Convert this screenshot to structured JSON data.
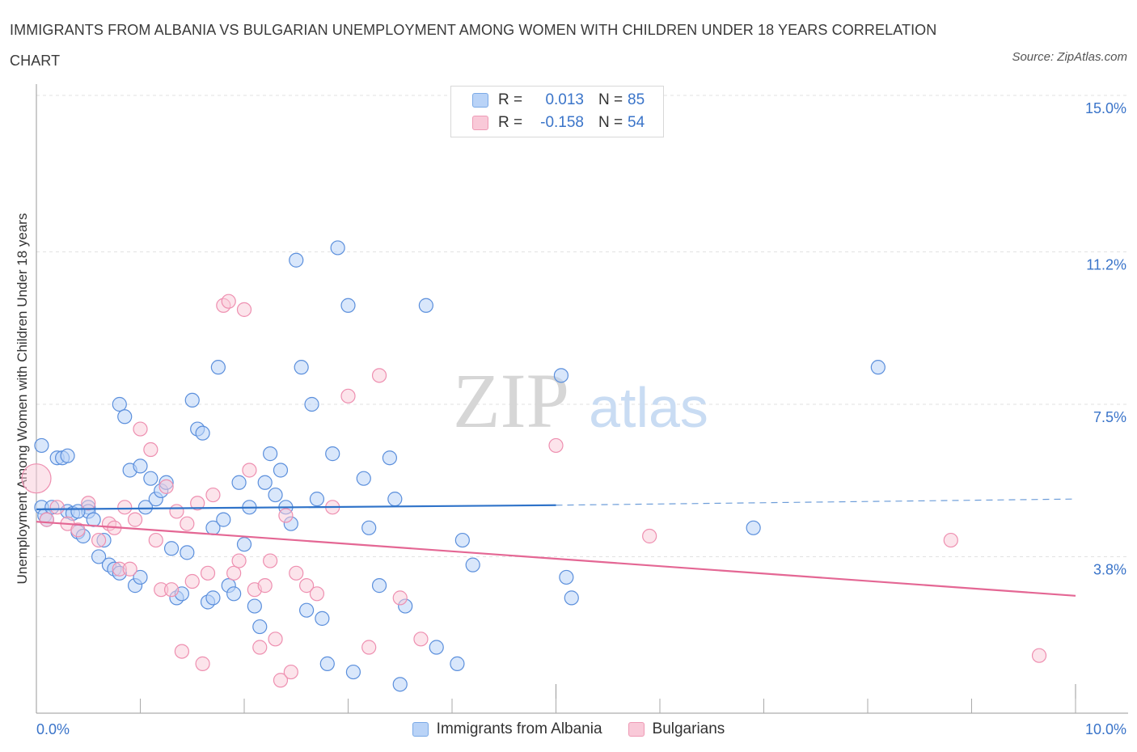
{
  "title": "IMMIGRANTS FROM ALBANIA VS BULGARIAN UNEMPLOYMENT AMONG WOMEN WITH CHILDREN UNDER 18 YEARS CORRELATION CHART",
  "source": "Source: ZipAtlas.com",
  "watermark": {
    "zip": "ZIP",
    "atlas": "atlas"
  },
  "colors": {
    "blue": "#5b8fdc",
    "blue_fill": "#b9d3f7",
    "blue_line": "#2f73c9",
    "pink": "#ee8fb0",
    "pink_fill": "#f9c9d8",
    "pink_line": "#e46794",
    "tick_text": "#3a74c9",
    "grid": "#e2e2e2"
  },
  "legend": {
    "rows": [
      {
        "r_label": "R =",
        "r_value": "0.013",
        "n_label": "N =",
        "n_value": "85"
      },
      {
        "r_label": "R =",
        "r_value": "-0.158",
        "n_label": "N =",
        "n_value": "54"
      }
    ]
  },
  "chart_data": {
    "type": "scatter",
    "title": "IMMIGRANTS FROM ALBANIA VS BULGARIAN UNEMPLOYMENT AMONG WOMEN WITH CHILDREN UNDER 18 YEARS CORRELATION CHART",
    "xlabel": "",
    "ylabel": "Unemployment Among Women with Children Under 18 years",
    "xlim": [
      0,
      10
    ],
    "ylim": [
      0,
      15
    ],
    "x_tick_labels": [
      "0.0%",
      "10.0%"
    ],
    "y_ticks": [
      3.8,
      7.5,
      11.2,
      15.0
    ],
    "y_tick_labels": [
      "3.8%",
      "7.5%",
      "11.2%",
      "15.0%"
    ],
    "grid": "horizontal dashed",
    "legend_placement": "bottom-center",
    "series": [
      {
        "name": "Immigrants from Albania",
        "r": 0.013,
        "n": 85,
        "trend": {
          "x0": 0.0,
          "y0": 4.95,
          "x1": 5.0,
          "y1": 5.05,
          "dashed_to_x": 10.0,
          "dashed_to_y": 5.2
        },
        "points": [
          [
            0.05,
            6.5
          ],
          [
            0.05,
            5.0
          ],
          [
            0.08,
            4.8
          ],
          [
            0.1,
            4.7
          ],
          [
            0.15,
            5.0
          ],
          [
            0.2,
            6.2
          ],
          [
            0.25,
            6.2
          ],
          [
            0.3,
            4.9
          ],
          [
            0.3,
            6.25
          ],
          [
            0.35,
            4.85
          ],
          [
            0.4,
            4.4
          ],
          [
            0.45,
            4.3
          ],
          [
            0.5,
            5.0
          ],
          [
            0.5,
            4.9
          ],
          [
            0.55,
            4.7
          ],
          [
            0.6,
            3.8
          ],
          [
            0.65,
            4.2
          ],
          [
            0.7,
            3.6
          ],
          [
            0.75,
            3.5
          ],
          [
            0.8,
            7.5
          ],
          [
            0.85,
            7.2
          ],
          [
            0.9,
            5.9
          ],
          [
            0.95,
            3.1
          ],
          [
            1.0,
            6.0
          ],
          [
            1.0,
            3.3
          ],
          [
            1.05,
            5.0
          ],
          [
            1.1,
            5.7
          ],
          [
            1.15,
            5.2
          ],
          [
            1.2,
            5.4
          ],
          [
            1.25,
            5.6
          ],
          [
            1.3,
            4.0
          ],
          [
            1.35,
            2.8
          ],
          [
            1.4,
            2.9
          ],
          [
            1.45,
            3.9
          ],
          [
            1.5,
            7.6
          ],
          [
            1.55,
            6.9
          ],
          [
            1.6,
            6.8
          ],
          [
            1.65,
            2.7
          ],
          [
            1.7,
            4.5
          ],
          [
            1.75,
            8.4
          ],
          [
            1.8,
            4.7
          ],
          [
            1.85,
            3.1
          ],
          [
            1.9,
            2.9
          ],
          [
            1.95,
            5.6
          ],
          [
            2.0,
            4.1
          ],
          [
            2.05,
            5.0
          ],
          [
            2.1,
            2.6
          ],
          [
            2.15,
            2.1
          ],
          [
            2.2,
            5.6
          ],
          [
            2.25,
            6.3
          ],
          [
            2.3,
            5.3
          ],
          [
            2.35,
            5.9
          ],
          [
            2.4,
            5.0
          ],
          [
            2.45,
            4.6
          ],
          [
            2.5,
            11.0
          ],
          [
            2.55,
            8.4
          ],
          [
            2.6,
            2.5
          ],
          [
            2.65,
            7.5
          ],
          [
            2.7,
            5.2
          ],
          [
            2.75,
            2.3
          ],
          [
            2.8,
            1.2
          ],
          [
            2.85,
            6.3
          ],
          [
            2.9,
            11.3
          ],
          [
            3.0,
            9.9
          ],
          [
            3.05,
            1.0
          ],
          [
            3.15,
            5.7
          ],
          [
            3.2,
            4.5
          ],
          [
            3.3,
            3.1
          ],
          [
            3.4,
            6.2
          ],
          [
            3.45,
            5.2
          ],
          [
            3.5,
            0.7
          ],
          [
            3.55,
            2.6
          ],
          [
            3.75,
            9.9
          ],
          [
            3.85,
            1.6
          ],
          [
            4.05,
            1.2
          ],
          [
            4.1,
            4.2
          ],
          [
            4.2,
            3.6
          ],
          [
            5.05,
            8.2
          ],
          [
            5.1,
            3.3
          ],
          [
            5.15,
            2.8
          ],
          [
            6.9,
            4.5
          ],
          [
            8.1,
            8.4
          ],
          [
            0.4,
            4.9
          ],
          [
            1.7,
            2.8
          ],
          [
            0.8,
            3.4
          ]
        ]
      },
      {
        "name": "Bulgarians",
        "r": -0.158,
        "n": 54,
        "trend": {
          "x0": 0.0,
          "y0": 4.65,
          "x1": 10.0,
          "y1": 2.85
        },
        "points": [
          [
            0.0,
            5.7
          ],
          [
            0.1,
            4.7
          ],
          [
            0.2,
            5.0
          ],
          [
            0.3,
            4.6
          ],
          [
            0.4,
            4.45
          ],
          [
            0.5,
            5.1
          ],
          [
            0.6,
            4.2
          ],
          [
            0.7,
            4.6
          ],
          [
            0.75,
            4.5
          ],
          [
            0.8,
            3.5
          ],
          [
            0.85,
            5.0
          ],
          [
            0.9,
            3.5
          ],
          [
            1.0,
            6.9
          ],
          [
            1.1,
            6.4
          ],
          [
            1.15,
            4.2
          ],
          [
            1.2,
            3.0
          ],
          [
            1.25,
            5.5
          ],
          [
            1.3,
            3.0
          ],
          [
            1.35,
            4.9
          ],
          [
            1.4,
            1.5
          ],
          [
            1.45,
            4.6
          ],
          [
            1.5,
            3.2
          ],
          [
            1.6,
            1.2
          ],
          [
            1.65,
            3.4
          ],
          [
            1.7,
            5.3
          ],
          [
            1.8,
            9.9
          ],
          [
            1.85,
            10.0
          ],
          [
            1.9,
            3.4
          ],
          [
            1.95,
            3.7
          ],
          [
            2.0,
            9.8
          ],
          [
            2.05,
            5.9
          ],
          [
            2.1,
            3.0
          ],
          [
            2.15,
            1.6
          ],
          [
            2.2,
            3.1
          ],
          [
            2.25,
            3.7
          ],
          [
            2.3,
            1.8
          ],
          [
            2.35,
            0.8
          ],
          [
            2.4,
            4.8
          ],
          [
            2.45,
            1.0
          ],
          [
            2.5,
            3.4
          ],
          [
            2.6,
            3.1
          ],
          [
            2.7,
            2.9
          ],
          [
            3.0,
            7.7
          ],
          [
            3.2,
            1.6
          ],
          [
            3.3,
            8.2
          ],
          [
            3.5,
            2.8
          ],
          [
            3.7,
            1.8
          ],
          [
            5.0,
            6.5
          ],
          [
            5.9,
            4.3
          ],
          [
            8.8,
            4.2
          ],
          [
            9.65,
            1.4
          ],
          [
            0.95,
            4.7
          ],
          [
            1.55,
            5.1
          ],
          [
            2.85,
            5.0
          ]
        ]
      }
    ]
  }
}
